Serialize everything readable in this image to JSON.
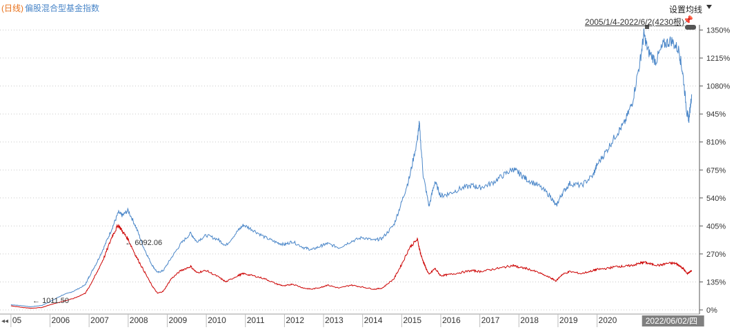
{
  "legend": {
    "period": "(日线)",
    "series_name": "偏股混合型基金指数"
  },
  "controls": {
    "ma_setting": "设置均线",
    "range": "2005/1/4-2022/6/2(4230根)"
  },
  "colors": {
    "index_line": "#4a86c8",
    "red_line": "#cc0000",
    "legend_period": "#e8701a",
    "cursor_date_bg": "#808080"
  },
  "chart_data": {
    "type": "line",
    "x_axis": {
      "tick_labels": [
        "05",
        "2006",
        "2007",
        "2008",
        "2009",
        "2010",
        "2011",
        "2012",
        "2013",
        "2014",
        "2015",
        "2016",
        "2017",
        "2018",
        "2019",
        "2020"
      ],
      "cursor_date": "2022/06/02/四"
    },
    "y_axis": {
      "tick_labels": [
        "1350%",
        "1215%",
        "1080%",
        "945%",
        "810%",
        "675%",
        "540%",
        "405%",
        "270%",
        "135%",
        "0%"
      ],
      "ylim": [
        -10,
        1375
      ],
      "unit": "%"
    },
    "annotations": {
      "peak": "6092.06",
      "low": "1011.50"
    },
    "series": [
      {
        "color": "#4a86c8",
        "points": [
          [
            2005.0,
            25
          ],
          [
            2005.3,
            20
          ],
          [
            2005.5,
            15
          ],
          [
            2005.8,
            22
          ],
          [
            2006.0,
            40
          ],
          [
            2006.3,
            70
          ],
          [
            2006.6,
            90
          ],
          [
            2006.9,
            120
          ],
          [
            2007.0,
            160
          ],
          [
            2007.2,
            230
          ],
          [
            2007.4,
            310
          ],
          [
            2007.6,
            400
          ],
          [
            2007.75,
            470
          ],
          [
            2007.85,
            455
          ],
          [
            2008.0,
            480
          ],
          [
            2008.2,
            400
          ],
          [
            2008.4,
            300
          ],
          [
            2008.6,
            220
          ],
          [
            2008.75,
            180
          ],
          [
            2008.9,
            190
          ],
          [
            2009.1,
            250
          ],
          [
            2009.35,
            320
          ],
          [
            2009.6,
            370
          ],
          [
            2009.75,
            330
          ],
          [
            2010.0,
            360
          ],
          [
            2010.3,
            340
          ],
          [
            2010.5,
            310
          ],
          [
            2010.8,
            380
          ],
          [
            2010.95,
            410
          ],
          [
            2011.2,
            385
          ],
          [
            2011.5,
            350
          ],
          [
            2011.8,
            325
          ],
          [
            2012.0,
            315
          ],
          [
            2012.2,
            330
          ],
          [
            2012.5,
            300
          ],
          [
            2012.7,
            290
          ],
          [
            2012.95,
            310
          ],
          [
            2013.1,
            320
          ],
          [
            2013.4,
            300
          ],
          [
            2013.7,
            330
          ],
          [
            2014.0,
            350
          ],
          [
            2014.3,
            335
          ],
          [
            2014.5,
            345
          ],
          [
            2014.8,
            410
          ],
          [
            2015.0,
            520
          ],
          [
            2015.2,
            640
          ],
          [
            2015.4,
            820
          ],
          [
            2015.45,
            900
          ],
          [
            2015.55,
            650
          ],
          [
            2015.7,
            500
          ],
          [
            2015.85,
            620
          ],
          [
            2016.0,
            550
          ],
          [
            2016.2,
            560
          ],
          [
            2016.5,
            585
          ],
          [
            2016.8,
            600
          ],
          [
            2017.0,
            590
          ],
          [
            2017.3,
            610
          ],
          [
            2017.6,
            650
          ],
          [
            2017.85,
            680
          ],
          [
            2018.0,
            660
          ],
          [
            2018.2,
            630
          ],
          [
            2018.5,
            600
          ],
          [
            2018.8,
            550
          ],
          [
            2018.95,
            500
          ],
          [
            2019.1,
            560
          ],
          [
            2019.3,
            610
          ],
          [
            2019.6,
            600
          ],
          [
            2019.9,
            650
          ],
          [
            2020.0,
            700
          ],
          [
            2020.25,
            770
          ],
          [
            2020.5,
            850
          ],
          [
            2020.7,
            900
          ],
          [
            2020.9,
            1000
          ],
          [
            2021.1,
            1200
          ],
          [
            2021.2,
            1330
          ],
          [
            2021.3,
            1250
          ],
          [
            2021.5,
            1200
          ],
          [
            2021.7,
            1280
          ],
          [
            2021.9,
            1300
          ],
          [
            2022.1,
            1250
          ],
          [
            2022.2,
            1130
          ],
          [
            2022.3,
            950
          ],
          [
            2022.35,
            920
          ],
          [
            2022.42,
            1040
          ]
        ]
      },
      {
        "color": "#cc0000",
        "points": [
          [
            2005.0,
            20
          ],
          [
            2005.3,
            12
          ],
          [
            2005.5,
            8
          ],
          [
            2005.8,
            12
          ],
          [
            2006.0,
            25
          ],
          [
            2006.3,
            40
          ],
          [
            2006.6,
            55
          ],
          [
            2006.9,
            80
          ],
          [
            2007.0,
            110
          ],
          [
            2007.2,
            180
          ],
          [
            2007.4,
            260
          ],
          [
            2007.6,
            360
          ],
          [
            2007.75,
            410
          ],
          [
            2007.85,
            380
          ],
          [
            2008.0,
            340
          ],
          [
            2008.2,
            260
          ],
          [
            2008.4,
            190
          ],
          [
            2008.6,
            120
          ],
          [
            2008.75,
            80
          ],
          [
            2008.9,
            90
          ],
          [
            2009.1,
            150
          ],
          [
            2009.35,
            190
          ],
          [
            2009.6,
            210
          ],
          [
            2009.75,
            180
          ],
          [
            2010.0,
            190
          ],
          [
            2010.3,
            160
          ],
          [
            2010.5,
            135
          ],
          [
            2010.8,
            165
          ],
          [
            2010.95,
            175
          ],
          [
            2011.2,
            165
          ],
          [
            2011.5,
            150
          ],
          [
            2011.8,
            125
          ],
          [
            2012.0,
            115
          ],
          [
            2012.2,
            125
          ],
          [
            2012.5,
            105
          ],
          [
            2012.7,
            100
          ],
          [
            2012.95,
            110
          ],
          [
            2013.1,
            120
          ],
          [
            2013.4,
            105
          ],
          [
            2013.7,
            120
          ],
          [
            2014.0,
            110
          ],
          [
            2014.3,
            100
          ],
          [
            2014.5,
            105
          ],
          [
            2014.8,
            150
          ],
          [
            2015.0,
            220
          ],
          [
            2015.2,
            300
          ],
          [
            2015.4,
            340
          ],
          [
            2015.5,
            260
          ],
          [
            2015.6,
            210
          ],
          [
            2015.7,
            170
          ],
          [
            2015.85,
            200
          ],
          [
            2016.0,
            165
          ],
          [
            2016.2,
            170
          ],
          [
            2016.5,
            180
          ],
          [
            2016.8,
            190
          ],
          [
            2017.0,
            185
          ],
          [
            2017.3,
            195
          ],
          [
            2017.6,
            205
          ],
          [
            2017.85,
            215
          ],
          [
            2018.0,
            205
          ],
          [
            2018.2,
            200
          ],
          [
            2018.5,
            180
          ],
          [
            2018.8,
            155
          ],
          [
            2018.95,
            140
          ],
          [
            2019.1,
            170
          ],
          [
            2019.3,
            185
          ],
          [
            2019.6,
            175
          ],
          [
            2019.9,
            190
          ],
          [
            2020.0,
            195
          ],
          [
            2020.25,
            200
          ],
          [
            2020.5,
            210
          ],
          [
            2020.7,
            210
          ],
          [
            2020.9,
            215
          ],
          [
            2021.1,
            225
          ],
          [
            2021.2,
            230
          ],
          [
            2021.4,
            220
          ],
          [
            2021.6,
            215
          ],
          [
            2021.8,
            225
          ],
          [
            2022.0,
            225
          ],
          [
            2022.1,
            215
          ],
          [
            2022.2,
            200
          ],
          [
            2022.3,
            175
          ],
          [
            2022.35,
            180
          ],
          [
            2022.42,
            190
          ]
        ]
      }
    ]
  }
}
